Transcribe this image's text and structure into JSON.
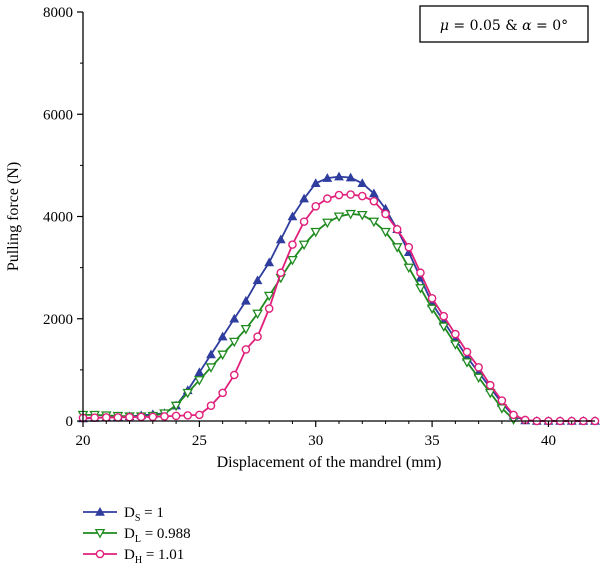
{
  "chart_data": {
    "type": "line",
    "xlabel": "Displacement of the mandrel (mm)",
    "ylabel": "Pulling force (N)",
    "xlim": [
      20,
      42
    ],
    "ylim": [
      0,
      8000
    ],
    "x_ticks": [
      20,
      25,
      30,
      35,
      40
    ],
    "y_ticks": [
      0,
      2000,
      4000,
      6000,
      8000
    ],
    "x_tick_labels": [
      "20",
      "25",
      "30",
      "35",
      "40"
    ],
    "y_tick_labels": [
      "0",
      "2000",
      "4000",
      "6000",
      "8000"
    ],
    "grid": false,
    "legend_position": "bottom-left, below plot",
    "annotation": {
      "parts": [
        {
          "text": "μ",
          "italic": true
        },
        {
          "text": " = 0.05 & ",
          "italic": false
        },
        {
          "text": "α",
          "italic": true
        },
        {
          "text": " = 0°",
          "italic": false
        }
      ]
    },
    "series": [
      {
        "name": "DS = 1",
        "label_main": "D",
        "label_sub": "S",
        "label_value": " = 1",
        "color": "#2e3d9e",
        "marker": "triangle-up",
        "x": [
          20.0,
          20.5,
          21.0,
          21.5,
          22.0,
          22.5,
          23.0,
          23.5,
          24.0,
          24.5,
          25.0,
          25.5,
          26.0,
          26.5,
          27.0,
          27.5,
          28.0,
          28.5,
          29.0,
          29.5,
          30.0,
          30.5,
          31.0,
          31.5,
          32.0,
          32.5,
          33.0,
          33.5,
          34.0,
          34.5,
          35.0,
          35.5,
          36.0,
          36.5,
          37.0,
          37.5,
          38.0,
          38.5,
          39.0,
          39.5,
          40.0,
          40.5,
          41.0,
          41.5,
          42.0
        ],
        "y": [
          50,
          60,
          70,
          80,
          90,
          110,
          130,
          150,
          300,
          600,
          950,
          1300,
          1650,
          2000,
          2350,
          2750,
          3100,
          3550,
          4000,
          4350,
          4650,
          4750,
          4780,
          4760,
          4650,
          4450,
          4150,
          3750,
          3300,
          2800,
          2300,
          1950,
          1600,
          1250,
          950,
          650,
          350,
          100,
          10,
          0,
          0,
          0,
          0,
          0,
          0
        ]
      },
      {
        "name": "DL = 0.988",
        "label_main": "D",
        "label_sub": "L",
        "label_value": " = 0.988",
        "color": "#1f8a1f",
        "marker": "triangle-down",
        "x": [
          20.0,
          20.5,
          21.0,
          21.5,
          22.0,
          22.5,
          23.0,
          23.5,
          24.0,
          24.5,
          25.0,
          25.5,
          26.0,
          26.5,
          27.0,
          27.5,
          28.0,
          28.5,
          29.0,
          29.5,
          30.0,
          30.5,
          31.0,
          31.5,
          32.0,
          32.5,
          33.0,
          33.5,
          34.0,
          34.5,
          35.0,
          35.5,
          36.0,
          36.5,
          37.0,
          37.5,
          38.0,
          38.5
        ],
        "y": [
          120,
          120,
          110,
          100,
          90,
          90,
          100,
          150,
          300,
          550,
          800,
          1050,
          1300,
          1550,
          1800,
          2100,
          2450,
          2800,
          3150,
          3450,
          3700,
          3880,
          4000,
          4050,
          4030,
          3900,
          3700,
          3400,
          3000,
          2600,
          2200,
          1850,
          1500,
          1150,
          850,
          550,
          250,
          30
        ]
      },
      {
        "name": "DH = 1.01",
        "label_main": "D",
        "label_sub": "H",
        "label_value": " = 1.01",
        "color": "#e0207a",
        "marker": "circle",
        "x": [
          20.0,
          20.5,
          21.0,
          21.5,
          22.0,
          22.5,
          23.0,
          23.5,
          24.0,
          24.5,
          25.0,
          25.5,
          26.0,
          26.5,
          27.0,
          27.5,
          28.0,
          28.5,
          29.0,
          29.5,
          30.0,
          30.5,
          31.0,
          31.5,
          32.0,
          32.5,
          33.0,
          33.5,
          34.0,
          34.5,
          35.0,
          35.5,
          36.0,
          36.5,
          37.0,
          37.5,
          38.0,
          38.5,
          39.0,
          39.5,
          40.0,
          40.5,
          41.0,
          41.5,
          42.0
        ],
        "y": [
          60,
          65,
          70,
          70,
          75,
          80,
          80,
          90,
          100,
          110,
          120,
          300,
          550,
          900,
          1400,
          1650,
          2200,
          2900,
          3450,
          3900,
          4200,
          4350,
          4420,
          4430,
          4400,
          4300,
          4050,
          3750,
          3400,
          2900,
          2400,
          2050,
          1700,
          1350,
          1050,
          700,
          400,
          120,
          20,
          0,
          0,
          0,
          0,
          0,
          0
        ]
      }
    ]
  }
}
